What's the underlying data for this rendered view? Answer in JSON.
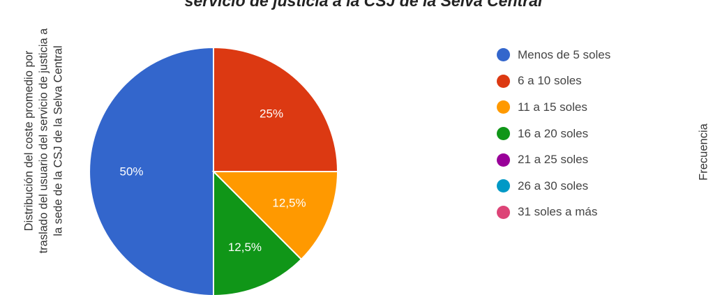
{
  "chart_data": {
    "type": "pie",
    "title": "servicio de justicia a la CSJ de la Selva Central",
    "ylabel_lines": [
      "Distribución del coste promedio por",
      "traslado del usuario del servicio de justicia a",
      "la sede de la CSJ de la Selva Central"
    ],
    "right_label": "Frecuencia",
    "legend_position": "right",
    "categories": [
      "Menos de 5 soles",
      "6 a 10 soles",
      "11 a 15 soles",
      "16 a 20 soles",
      "21 a 25 soles",
      "26 a 30 soles",
      "31 soles a más"
    ],
    "values": [
      50,
      25,
      12.5,
      12.5,
      0,
      0,
      0
    ],
    "data_labels": [
      "50%",
      "25%",
      "12,5%",
      "12,5%",
      "",
      "",
      ""
    ],
    "colors": [
      "#3366cc",
      "#dc3912",
      "#ff9900",
      "#109618",
      "#990099",
      "#0099c6",
      "#dd4477"
    ]
  }
}
